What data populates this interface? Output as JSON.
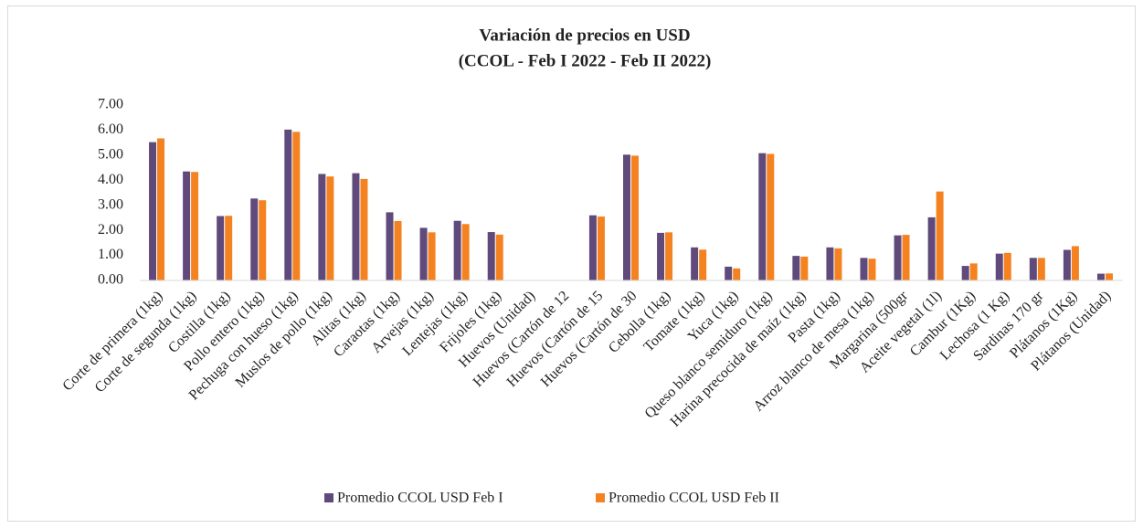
{
  "chart_data": {
    "type": "bar",
    "title": "Variación de precios en USD",
    "subtitle": "(CCOL - Feb I 2022 - Feb II 2022)",
    "categories": [
      "Corte de primera (1kg)",
      "Corte de segunda (1kg)",
      "Costilla (1kg)",
      "Pollo entero (1kg)",
      "Pechuga con hueso (1kg)",
      "Muslos de pollo (1kg)",
      "Alitas (1kg)",
      "Caraotas (1kg)",
      "Arvejas (1kg)",
      "Lentejas (1kg)",
      "Frijoles (1kg)",
      "Huevos (Unidad)",
      "Huevos (Cartón de 12",
      "Huevos (Cartón de 15",
      "Huevos (Cartón de 30",
      "Cebolla (1kg)",
      "Tomate (1kg)",
      "Yuca (1kg)",
      "Queso blanco semiduro (1kg)",
      "Harina precocida de maíz (1kg)",
      "Pasta (1kg)",
      "Arroz blanco de mesa (1kg)",
      "Margarina (500gr",
      "Aceite vegetal (1l)",
      "Cambur (1Kg)",
      "Lechosa (1 Kg)",
      "Sardinas 170 gr",
      "Plátanos (1Kg)",
      "Plátanos (Unidad)"
    ],
    "series": [
      {
        "name": "Promedio CCOL USD Feb I",
        "color": "#604a7b",
        "values": [
          5.52,
          4.35,
          2.57,
          3.27,
          6.02,
          4.25,
          4.28,
          2.72,
          2.1,
          2.38,
          1.93,
          null,
          null,
          2.6,
          5.02,
          1.9,
          1.32,
          0.55,
          5.08,
          0.98,
          1.32,
          0.9,
          1.8,
          2.52,
          0.58,
          1.07,
          0.9,
          1.22,
          0.27
        ]
      },
      {
        "name": "Promedio CCOL USD Feb II",
        "color": "#f58220",
        "values": [
          5.67,
          4.33,
          2.58,
          3.2,
          5.93,
          4.15,
          4.05,
          2.37,
          1.92,
          2.25,
          1.83,
          null,
          null,
          2.55,
          4.98,
          1.92,
          1.23,
          0.48,
          5.05,
          0.95,
          1.28,
          0.87,
          1.82,
          3.55,
          0.68,
          1.1,
          0.9,
          1.37,
          0.28
        ]
      }
    ],
    "ylim": [
      0,
      7
    ],
    "yticks": [
      {
        "value": 0,
        "label": "0.00"
      },
      {
        "value": 1,
        "label": "1.00"
      },
      {
        "value": 2,
        "label": "2.00"
      },
      {
        "value": 3,
        "label": "3.00"
      },
      {
        "value": 4,
        "label": "4.00"
      },
      {
        "value": 5,
        "label": "5.00"
      },
      {
        "value": 6,
        "label": "6.00"
      },
      {
        "value": 7,
        "label": "7.00"
      }
    ],
    "grid": false,
    "legend": "bottom"
  }
}
